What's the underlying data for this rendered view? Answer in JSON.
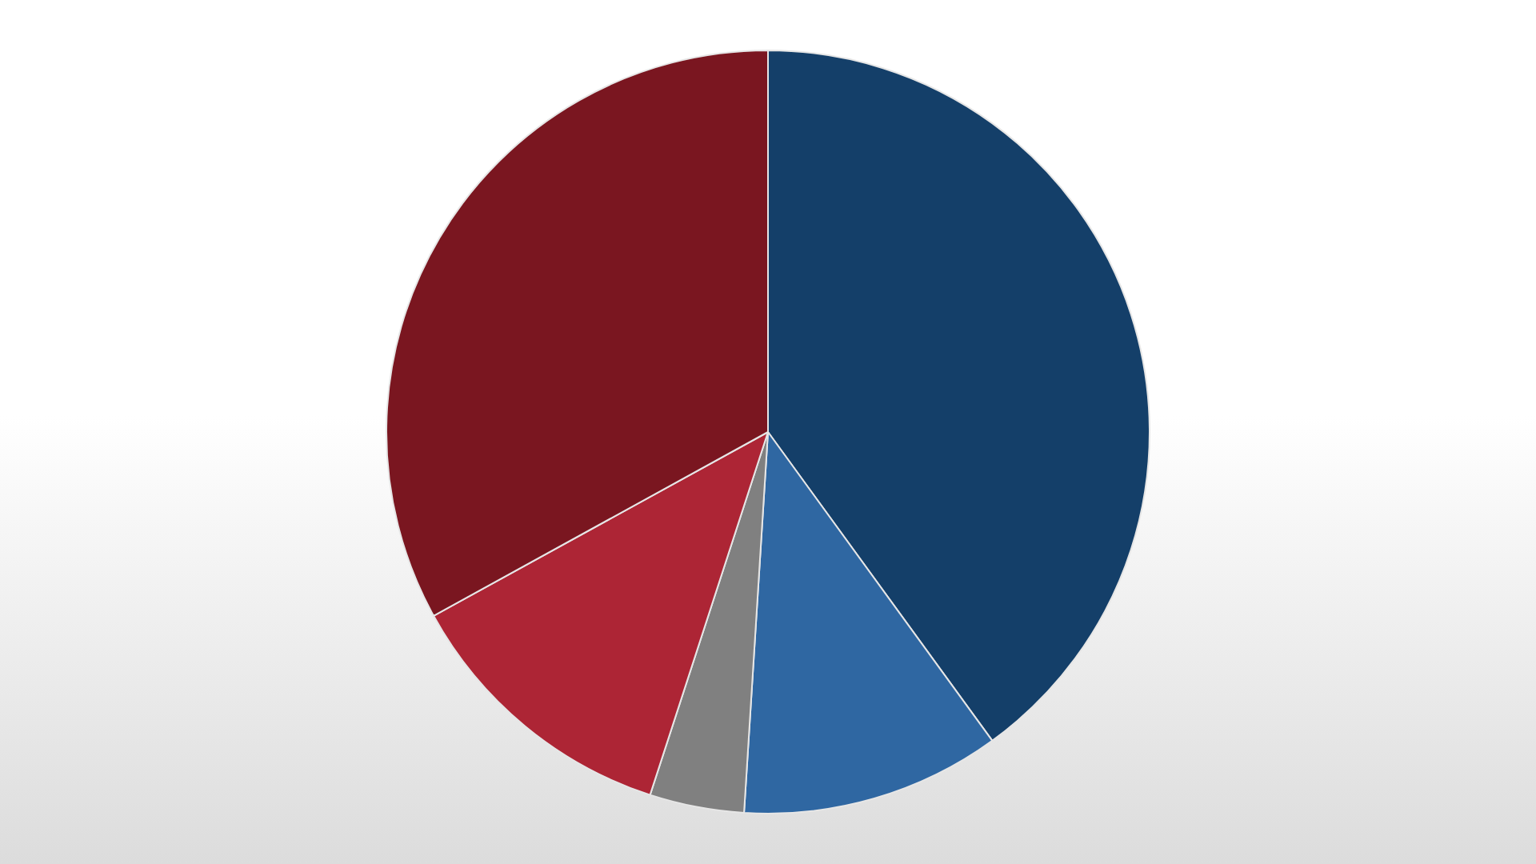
{
  "chart_data": {
    "type": "pie",
    "categories": [
      null,
      null,
      null,
      null,
      null
    ],
    "values": [
      40,
      11,
      4,
      12,
      33
    ],
    "colors": [
      "#143f69",
      "#2f67a2",
      "#808080",
      "#ad2535",
      "#7a1620"
    ]
  }
}
